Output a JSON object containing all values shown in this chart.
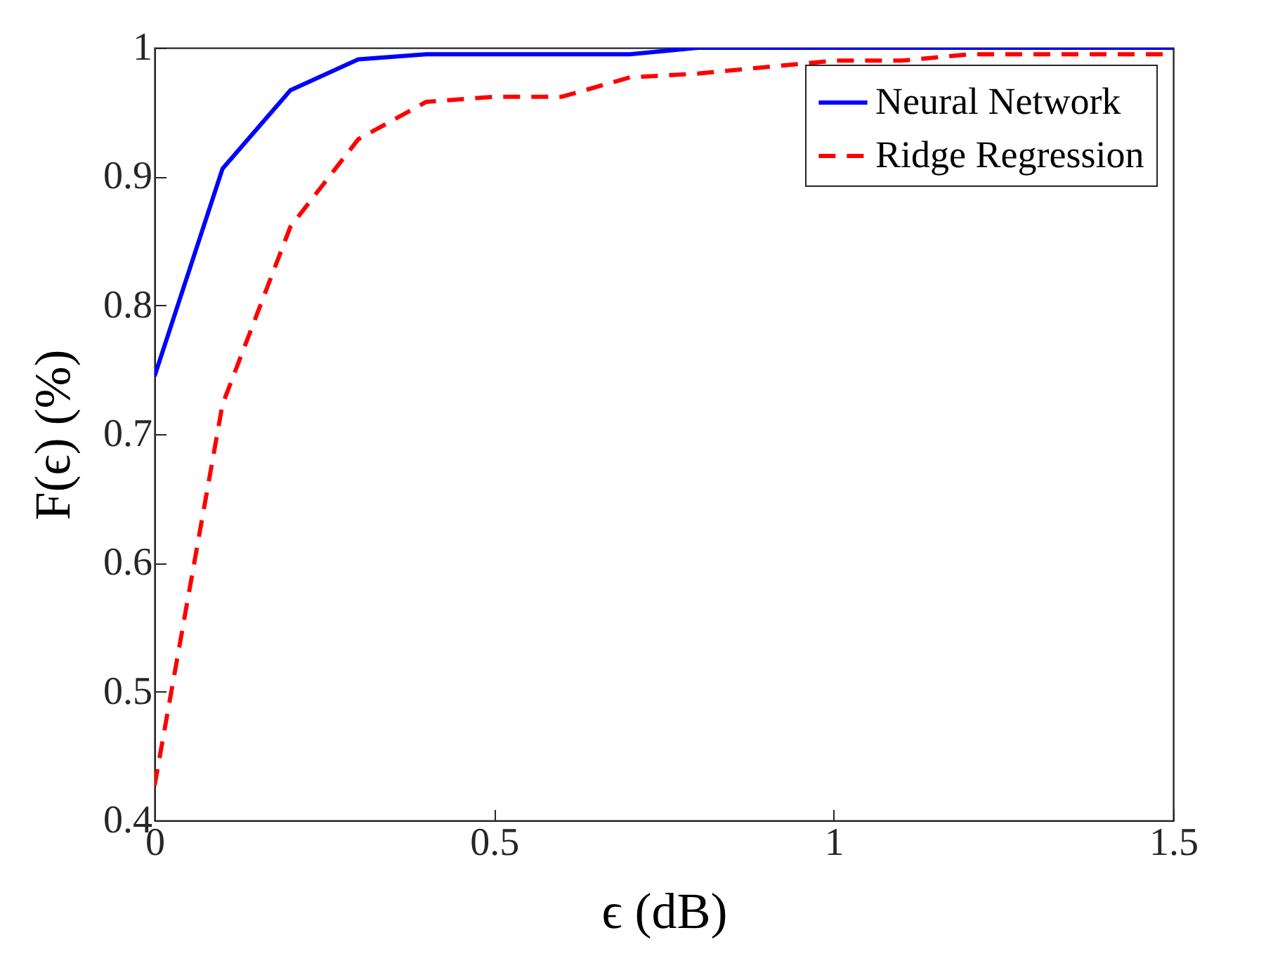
{
  "chart_data": {
    "type": "line",
    "xlabel": "ϵ  (dB)",
    "ylabel": "F(ϵ) (%)",
    "x": [
      0,
      0.1,
      0.2,
      0.3,
      0.4,
      0.5,
      0.6,
      0.7,
      0.8,
      0.9,
      1.0,
      1.1,
      1.2,
      1.3,
      1.4,
      1.5
    ],
    "series": [
      {
        "name": "Neural Network",
        "color": "#0000ff",
        "line_style": "solid",
        "values": [
          0.745,
          0.906,
          0.967,
          0.991,
          0.995,
          0.995,
          0.995,
          0.995,
          1,
          1,
          1,
          1,
          1,
          1,
          1,
          1
        ]
      },
      {
        "name": "Ridge Regression",
        "color": "#ff0000",
        "line_style": "dashed",
        "values": [
          0.427,
          0.723,
          0.861,
          0.929,
          0.958,
          0.962,
          0.962,
          0.977,
          0.98,
          0.985,
          0.99,
          0.99,
          0.995,
          0.995,
          0.995,
          0.995
        ]
      }
    ],
    "xlim": [
      0,
      1.5
    ],
    "xticks": [
      0,
      0.5,
      1,
      1.5
    ],
    "ylim": [
      0.4,
      1
    ],
    "yticks": [
      0.4,
      0.5,
      0.6,
      0.7,
      0.8,
      0.9,
      1
    ],
    "grid": false,
    "legend": "top right",
    "marker": "none"
  }
}
